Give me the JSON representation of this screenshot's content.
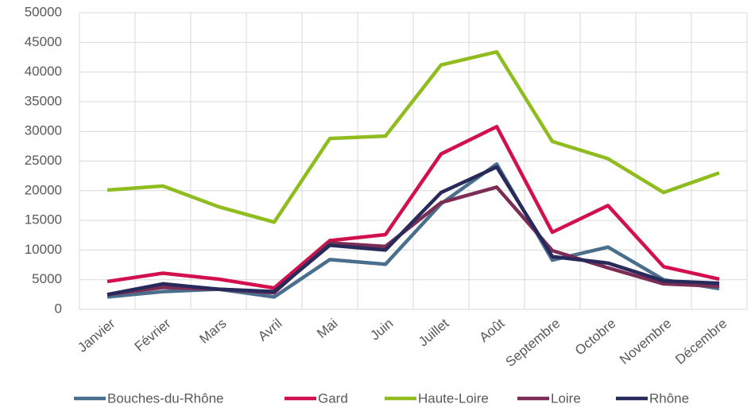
{
  "chart_data": {
    "type": "line",
    "categories": [
      "Janvier",
      "Février",
      "Mars",
      "Avril",
      "Mai",
      "Juin",
      "Juillet",
      "Août",
      "Septembre",
      "Octobre",
      "Novembre",
      "Décembre"
    ],
    "series": [
      {
        "name": "Bouches-du-Rhône",
        "color": "#4a6f8c",
        "values": [
          2100,
          3000,
          3400,
          2100,
          8400,
          7600,
          17800,
          24500,
          8300,
          10500,
          5000,
          3500
        ]
      },
      {
        "name": "Gard",
        "color": "#d2104e",
        "values": [
          4700,
          6100,
          5100,
          3600,
          11600,
          12600,
          26200,
          30800,
          13000,
          17500,
          7200,
          5100
        ]
      },
      {
        "name": "Haute-Loire",
        "color": "#8fbc1f",
        "values": [
          20100,
          20800,
          17300,
          14700,
          28800,
          29200,
          41200,
          43400,
          28300,
          25400,
          19700,
          23000
        ]
      },
      {
        "name": "Loire",
        "color": "#7b2d56",
        "values": [
          2500,
          3700,
          3400,
          2800,
          11200,
          10600,
          18000,
          20600,
          9900,
          7000,
          4300,
          3900
        ]
      },
      {
        "name": "Rhône",
        "color": "#282a5c",
        "values": [
          2500,
          4300,
          3400,
          3000,
          10800,
          10000,
          19700,
          24000,
          8900,
          7800,
          4800,
          4400
        ]
      }
    ],
    "ylim": [
      0,
      50000
    ],
    "yticks": [
      0,
      5000,
      10000,
      15000,
      20000,
      25000,
      30000,
      35000,
      40000,
      45000,
      50000
    ],
    "grid": true,
    "legend": "bottom"
  }
}
